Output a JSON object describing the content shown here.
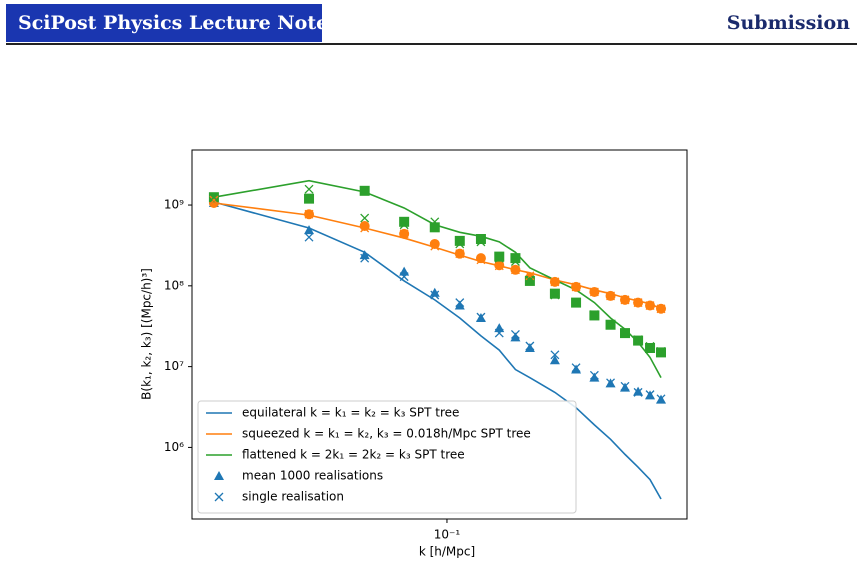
{
  "header": {
    "journal": "SciPost Physics Lecture Notes",
    "status": "Submission"
  },
  "chart_data": {
    "type": "line",
    "xscale": "log",
    "yscale": "log",
    "xlabel": "k [h/Mpc]",
    "ylabel": "B(k₁, k₂, k₃) [(Mpc/h)³]",
    "xlim": [
      0.0156,
      0.575
    ],
    "ylim": [
      130000,
      4800000000
    ],
    "xticks": [
      {
        "value": 0.1,
        "label": "10⁻¹"
      }
    ],
    "yticks": [
      {
        "value": 1000000,
        "label": "10⁶"
      },
      {
        "value": 10000000,
        "label": "10⁷"
      },
      {
        "value": 100000000,
        "label": "10⁸"
      },
      {
        "value": 1000000000,
        "label": "10⁹"
      }
    ],
    "legend": "lower left",
    "x": [
      0.0183,
      0.0366,
      0.0549,
      0.0732,
      0.0915,
      0.1098,
      0.1281,
      0.1464,
      0.1647,
      0.183,
      0.2196,
      0.2562,
      0.2928,
      0.3294,
      0.366,
      0.4026,
      0.4392,
      0.4758
    ],
    "series": [
      {
        "name": "equilateral k = k₁ = k₂ = k₃ SPT tree",
        "color": "#1f77b4",
        "values": [
          1090000000,
          520000000,
          260000000,
          115000000,
          67000000,
          40000000,
          24000000,
          16000000,
          9200000,
          7300000,
          4800000,
          3100000,
          1900000,
          1260000,
          820000,
          570000,
          400000,
          230000
        ]
      },
      {
        "name": "squeezed k = k₁ = k₂, k₃ = 0.018h/Mpc SPT tree",
        "color": "#ff7f0e",
        "values": [
          1060000000,
          750000000,
          520000000,
          390000000,
          300000000,
          240000000,
          200000000,
          177000000,
          158000000,
          145000000,
          118000000,
          103000000,
          89000000,
          80000000,
          71000000,
          65000000,
          60000000,
          52000000
        ]
      },
      {
        "name": "flattened k = 2k₁ = 2k₂ = k₃ SPT tree",
        "color": "#2ca02c",
        "values": [
          1250000000,
          2000000000,
          1450000000,
          920000000,
          570000000,
          460000000,
          410000000,
          350000000,
          260000000,
          167000000,
          118000000,
          89000000,
          62000000,
          40000000,
          29000000,
          20000000,
          13000000,
          7300000
        ]
      }
    ],
    "points": [
      {
        "name": "mean 1000 realisations",
        "groups": [
          {
            "color": "#1f77b4",
            "symbol": "triangle",
            "values": [
              1060000000,
              490000000,
              240000000,
              150000000,
              82000000,
              57000000,
              40000000,
              30000000,
              23000000,
              17000000,
              12000000,
              9200000,
              7300000,
              6200000,
              5500000,
              4900000,
              4400000,
              3900000
            ]
          },
          {
            "color": "#ff7f0e",
            "symbol": "circle",
            "values": [
              1060000000,
              770000000,
              550000000,
              440000000,
              330000000,
              250000000,
              220000000,
              180000000,
              158000000,
              125000000,
              112000000,
              97000000,
              84000000,
              75000000,
              67000000,
              62000000,
              57000000,
              52000000
            ]
          },
          {
            "color": "#2ca02c",
            "symbol": "square",
            "values": [
              1250000000,
              1200000000,
              1500000000,
              620000000,
              530000000,
              360000000,
              380000000,
              230000000,
              220000000,
              115000000,
              80000000,
              62000000,
              43000000,
              33000000,
              26000000,
              21000000,
              17000000,
              15000000
            ]
          }
        ]
      },
      {
        "name": "single realisation",
        "groups": [
          {
            "color": "#1f77b4",
            "symbol": "x",
            "values": [
              1150000000,
              400000000,
              220000000,
              130000000,
              77000000,
              62000000,
              41000000,
              26000000,
              25000000,
              18000000,
              14000000,
              9700000,
              7800000,
              6300000,
              5700000,
              4800000,
              4500000,
              4000000
            ]
          },
          {
            "color": "#ff7f0e",
            "symbol": "x",
            "values": [
              1150000000,
              770000000,
              520000000,
              440000000,
              310000000,
              250000000,
              210000000,
              177000000,
              158000000,
              133000000,
              112000000,
              97000000,
              84000000,
              75000000,
              67000000,
              62000000,
              57000000,
              52000000
            ]
          },
          {
            "color": "#2ca02c",
            "symbol": "x",
            "values": [
              1250000000,
              1570000000,
              690000000,
              570000000,
              620000000,
              330000000,
              350000000,
              220000000,
              200000000,
              118000000,
              77000000,
              62000000,
              44000000,
              33000000,
              26000000,
              21500000,
              17800000,
              15400000
            ]
          }
        ]
      }
    ]
  }
}
